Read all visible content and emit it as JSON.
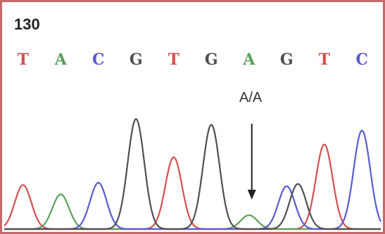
{
  "chart_data": {
    "type": "line",
    "title": "",
    "position_label": "130",
    "annotation": {
      "text": "A/A",
      "at_index": 6
    },
    "bases": [
      "T",
      "A",
      "C",
      "G",
      "T",
      "G",
      "A",
      "G",
      "T",
      "C"
    ],
    "x": [
      0,
      1,
      2,
      3,
      4,
      5,
      6,
      7,
      8,
      9
    ],
    "xlim": [
      -0.5,
      9.5
    ],
    "ylim": [
      0,
      1
    ],
    "grid": false,
    "legend": "none",
    "colors": {
      "A": "#5aa05a",
      "C": "#5a5ad2",
      "G": "#505050",
      "T": "#d45050",
      "frame": "#c26a6a",
      "arrow": "#222222"
    },
    "series": [
      {
        "base": "T",
        "peaks": [
          [
            0.0,
            0.38
          ],
          [
            4.0,
            0.62
          ],
          [
            8.0,
            0.73
          ]
        ]
      },
      {
        "base": "A",
        "peaks": [
          [
            1.0,
            0.3
          ],
          [
            6.0,
            0.12
          ]
        ]
      },
      {
        "base": "C",
        "peaks": [
          [
            2.0,
            0.4
          ],
          [
            7.0,
            0.37
          ],
          [
            9.0,
            0.85
          ]
        ]
      },
      {
        "base": "G",
        "peaks": [
          [
            3.0,
            0.95
          ],
          [
            5.0,
            0.9
          ],
          [
            7.3,
            0.39
          ]
        ]
      }
    ]
  }
}
